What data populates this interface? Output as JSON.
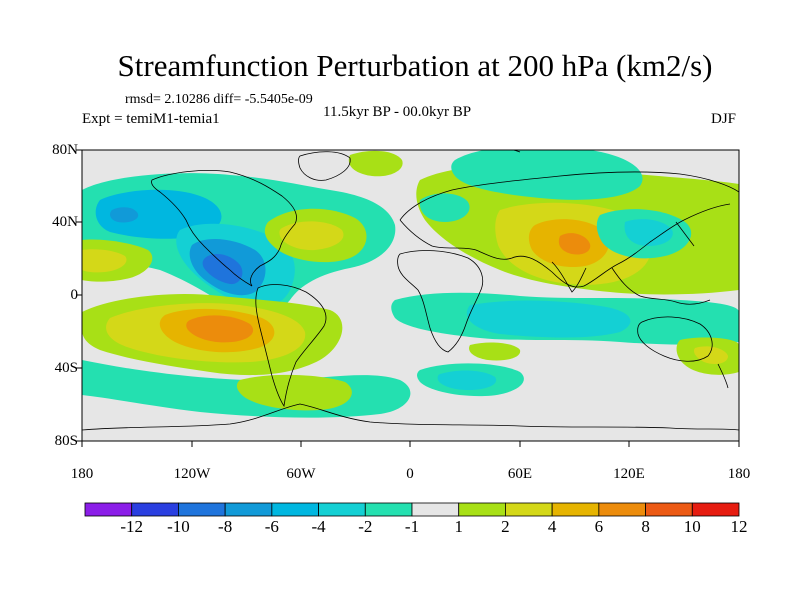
{
  "title": "Streamfunction Perturbation at 200 hPa (km2/s)",
  "stats": "rmsd= 2.10286 diff= -5.5405e-09",
  "experiment": "Expt = temiM1-temia1",
  "period": "11.5kyr BP - 00.0kyr BP",
  "season": "DJF",
  "axes": {
    "lat_labels": [
      "80N",
      "40N",
      "0",
      "40S",
      "80S"
    ],
    "lon_labels": [
      "180",
      "120W",
      "60W",
      "0",
      "60E",
      "120E",
      "180"
    ]
  },
  "colorbar": {
    "labels": [
      "-12",
      "-10",
      "-8",
      "-6",
      "-4",
      "-2",
      "-1",
      "1",
      "2",
      "4",
      "6",
      "8",
      "10",
      "12"
    ],
    "colors": [
      "#8b1ee8",
      "#2a3fe0",
      "#1f74dc",
      "#119ad8",
      "#00b7e0",
      "#14d0d4",
      "#24e0b0",
      "#e6e6e6",
      "#a8e016",
      "#d4d818",
      "#e6b400",
      "#ec8c0c",
      "#ec5a14",
      "#e61c10"
    ]
  },
  "colors": {
    "neutral": "#e6e6e6",
    "pos1": "#a8e016",
    "pos2": "#d4d818",
    "pos3": "#e6b400",
    "pos4": "#ec8c0c",
    "neg1": "#24e0b0",
    "neg2": "#14d0d4",
    "neg3": "#00b7e0",
    "neg4": "#119ad8",
    "neg5": "#1f74dc"
  }
}
